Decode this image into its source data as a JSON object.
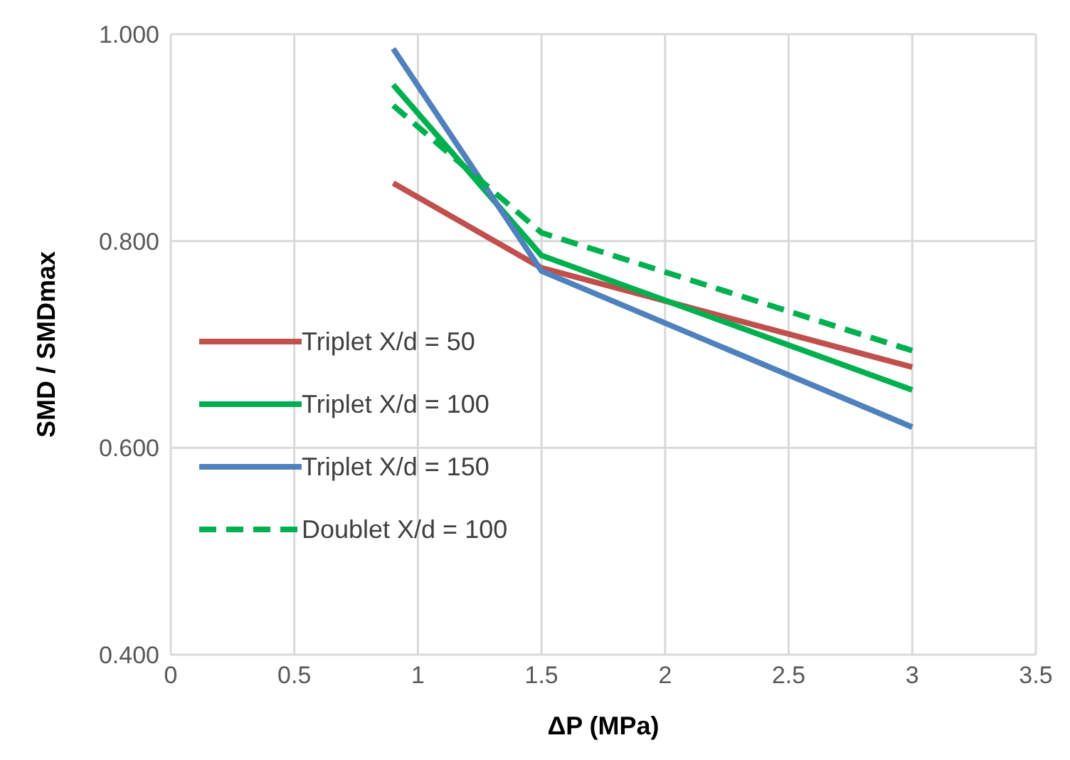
{
  "chart_data": {
    "type": "line",
    "xlabel": "ΔP (MPa)",
    "ylabel": "SMD / SMDmax",
    "x": [
      0.9,
      1.5,
      3
    ],
    "series": [
      {
        "name": "Triplet X/d = 50",
        "color": "#c0504d",
        "values": [
          0.856,
          0.774,
          0.678
        ]
      },
      {
        "name": "Triplet X/d = 100",
        "color": "#00b050",
        "values": [
          0.951,
          0.786,
          0.656
        ]
      },
      {
        "name": "Triplet X/d = 150",
        "color": "#4f81bd",
        "values": [
          0.986,
          0.771,
          0.62
        ]
      },
      {
        "name": "Doublet X/d = 100",
        "color": "#00b050",
        "values": [
          0.931,
          0.808,
          0.694
        ],
        "line_style": "dashed"
      }
    ],
    "xlim": [
      0,
      3.5
    ],
    "xticks": [
      0,
      0.5,
      1,
      1.5,
      2,
      2.5,
      3,
      3.5
    ],
    "ylim": [
      0.4,
      1
    ],
    "yticks": [
      {
        "value": 0.4,
        "label": "0.400"
      },
      {
        "value": 0.6,
        "label": "0.600"
      },
      {
        "value": 0.8,
        "label": "0.800"
      },
      {
        "value": 1,
        "label": "1.000"
      }
    ],
    "grid": true,
    "legend": "left",
    "marker": "none"
  }
}
